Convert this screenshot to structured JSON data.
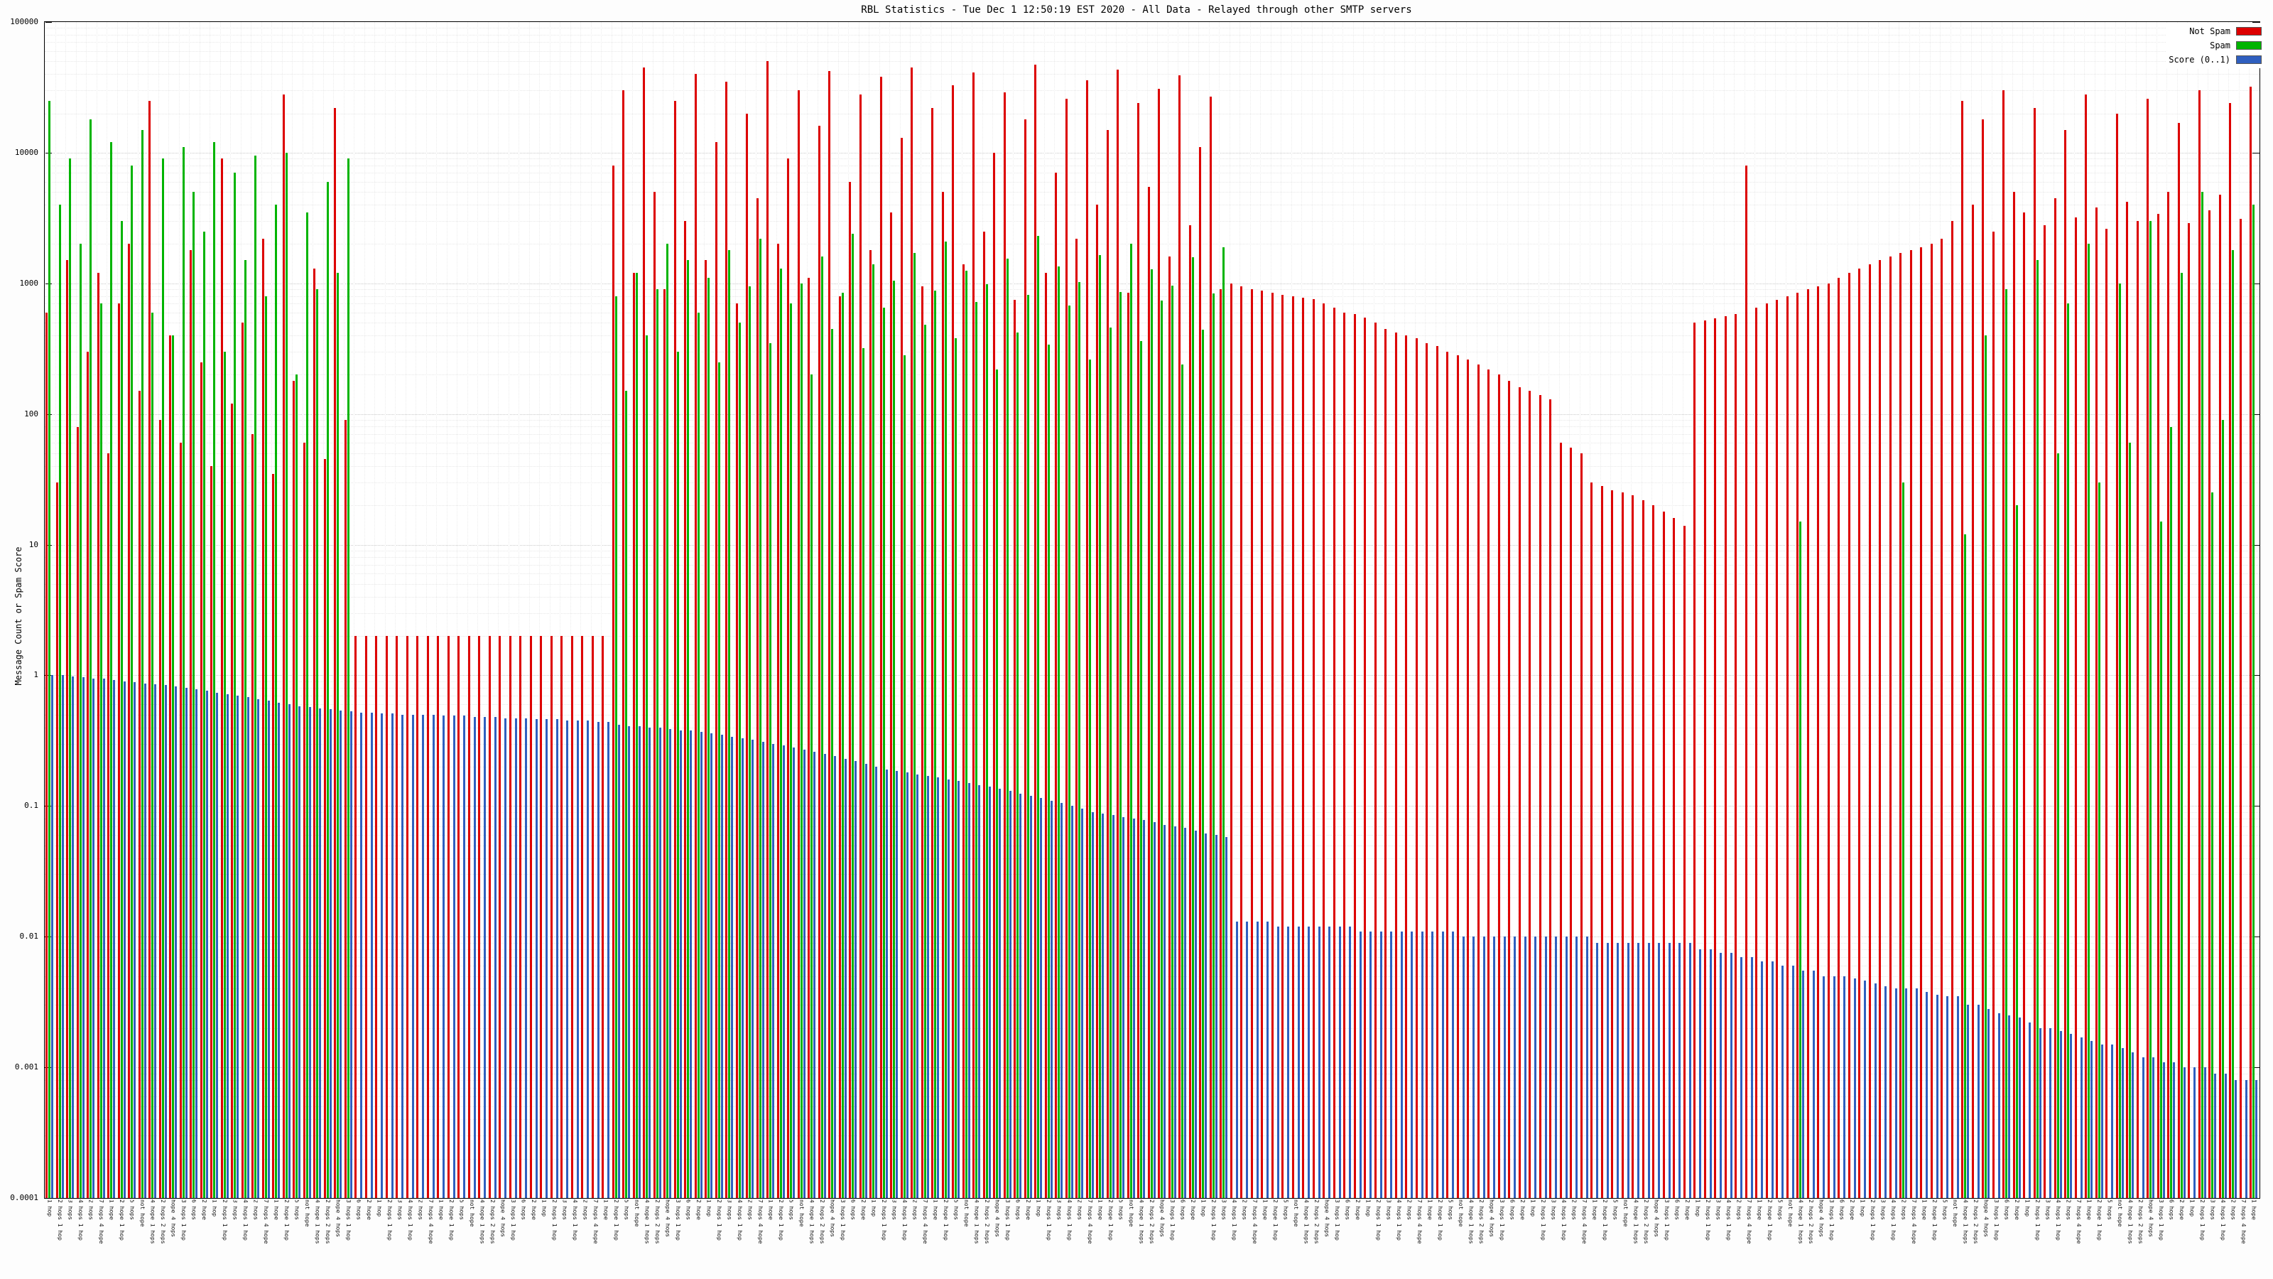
{
  "title": "RBL Statistics - Tue Dec  1 12:50:19 EST 2020 - All Data - Relayed through other SMTP servers",
  "chart_data": {
    "type": "bar",
    "scale": "log",
    "title": "RBL Statistics - Tue Dec  1 12:50:19 EST 2020 - All Data - Relayed through other SMTP servers",
    "xlabel": "",
    "ylabel": "Message Count or Spam Score",
    "ylim": [
      0.0001,
      100000
    ],
    "yticks": [
      "0.0001",
      "0.001",
      "0.01",
      "0.1",
      "1",
      "10",
      "100",
      "1000",
      "10000",
      "100000"
    ],
    "grid": true,
    "legend_position": "top-right",
    "categories_note": "x tick labels are RBL/relay host entries, too small to read in source; representative cycle used",
    "categories_cycle": [
      "1 hop",
      "2 hops 1 hop",
      "3 hops",
      "4 hops 1 hop",
      "2 hops",
      "7 hops 4 hope",
      "1 hope",
      "2 hope 1 hop",
      "5 hops",
      "not hope",
      "4 hope 1 hops",
      "2 hops 2 hops",
      "hope 4 hops",
      "3 hops 1 hop",
      "6 hops",
      "2 hope"
    ],
    "legend": [
      {
        "name": "Not Spam",
        "color": "#dd0000"
      },
      {
        "name": "Spam",
        "color": "#00b400"
      },
      {
        "name": "Score (0..1)",
        "color": "#2f5fbf"
      }
    ],
    "series": [
      {
        "name": "Not Spam",
        "color": "#dd0000",
        "values": [
          600,
          30,
          1500,
          80,
          300,
          1200,
          50,
          700,
          2000,
          150,
          25000,
          90,
          400,
          60,
          1800,
          250,
          40,
          9000,
          120,
          500,
          70,
          2200,
          35,
          28000,
          180,
          60,
          1300,
          45,
          22000,
          90,
          2,
          2,
          2,
          2,
          2,
          2,
          2,
          2,
          2,
          2,
          2,
          2,
          2,
          2,
          2,
          2,
          2,
          2,
          2,
          2,
          2,
          2,
          2,
          2,
          2,
          8000,
          30000,
          1200,
          45000,
          5000,
          900,
          25000,
          3000,
          40000,
          1500,
          12000,
          35000,
          700,
          20000,
          4500,
          50000,
          2000,
          9000,
          30000,
          1100,
          16000,
          42000,
          800,
          6000,
          28000,
          1800,
          38000,
          3500,
          13000,
          45000,
          950,
          22000,
          5000,
          33000,
          1400,
          41000,
          2500,
          10000,
          29000,
          750,
          18000,
          47000,
          1200,
          7000,
          26000,
          2200,
          36000,
          4000,
          15000,
          43000,
          850,
          24000,
          5500,
          31000,
          1600,
          39000,
          2800,
          11000,
          27000,
          900,
          1000,
          950,
          900,
          880,
          850,
          820,
          800,
          780,
          760,
          700,
          650,
          600,
          580,
          550,
          500,
          450,
          420,
          400,
          380,
          350,
          330,
          300,
          280,
          260,
          240,
          220,
          200,
          180,
          160,
          150,
          140,
          130,
          60,
          55,
          50,
          30,
          28,
          26,
          25,
          24,
          22,
          20,
          18,
          16,
          14,
          500,
          520,
          540,
          560,
          580,
          8000,
          650,
          700,
          750,
          800,
          850,
          900,
          950,
          1000,
          1100,
          1200,
          1300,
          1400,
          1500,
          1600,
          1700,
          1800,
          1900,
          2000,
          2200,
          3000,
          25000,
          4000,
          18000,
          2500,
          30000,
          5000,
          3500,
          22000,
          2800,
          4500,
          15000,
          3200,
          28000,
          3800,
          2600,
          20000,
          4200,
          3000,
          26000,
          3400,
          5000,
          17000,
          2900,
          30000,
          3600,
          4800,
          24000,
          3100,
          32000
        ]
      },
      {
        "name": "Spam",
        "color": "#00b400",
        "values": [
          25000,
          4000,
          9000,
          2000,
          18000,
          700,
          12000,
          3000,
          8000,
          15000,
          600,
          9000,
          400,
          11000,
          5000,
          2500,
          12000,
          300,
          7000,
          1500,
          9500,
          800,
          4000,
          10000,
          200,
          3500,
          900,
          6000,
          1200,
          9000,
          0,
          0,
          0,
          0,
          0,
          0,
          0,
          0,
          0,
          0,
          0,
          0,
          0,
          0,
          0,
          0,
          0,
          0,
          0,
          0,
          0,
          0,
          0,
          0,
          0,
          800,
          150,
          1200,
          400,
          900,
          2000,
          300,
          1500,
          600,
          1100,
          250,
          1800,
          500,
          950,
          2200,
          350,
          1300,
          700,
          1000,
          200,
          1600,
          450,
          850,
          2400,
          320,
          1400,
          650,
          1050,
          280,
          1700,
          480,
          880,
          2100,
          380,
          1250,
          720,
          980,
          220,
          1550,
          420,
          820,
          2300,
          340,
          1350,
          680,
          1020,
          260,
          1650,
          460,
          860,
          2000,
          360,
          1280,
          740,
          960,
          240,
          1580,
          440,
          840,
          1900,
          0,
          0,
          0,
          0,
          0,
          0,
          0,
          0,
          0,
          0,
          0,
          0,
          0,
          0,
          0,
          0,
          0,
          0,
          0,
          0,
          0,
          0,
          0,
          0,
          0,
          0,
          0,
          0,
          0,
          0,
          0,
          0,
          0,
          0,
          0,
          0,
          0,
          0,
          0,
          0,
          0,
          0,
          0,
          0,
          0,
          0,
          0,
          0,
          0,
          0,
          0,
          0,
          0,
          0,
          0,
          15,
          0,
          0,
          0,
          0,
          0,
          0,
          0,
          0,
          0,
          30,
          0,
          0,
          0,
          0,
          0,
          12,
          0,
          400,
          0,
          900,
          20,
          0,
          1500,
          0,
          50,
          700,
          0,
          2000,
          30,
          0,
          1000,
          60,
          0,
          3000,
          15,
          80,
          1200,
          0,
          5000,
          25,
          90,
          1800,
          0,
          4000
        ]
      },
      {
        "name": "Score (0..1)",
        "color": "#2f5fbf",
        "values": [
          1.0,
          1.0,
          0.98,
          0.97,
          0.95,
          0.94,
          0.92,
          0.9,
          0.89,
          0.87,
          0.85,
          0.84,
          0.82,
          0.8,
          0.78,
          0.76,
          0.74,
          0.72,
          0.7,
          0.68,
          0.66,
          0.64,
          0.62,
          0.6,
          0.58,
          0.57,
          0.56,
          0.55,
          0.54,
          0.53,
          0.52,
          0.52,
          0.51,
          0.51,
          0.5,
          0.5,
          0.5,
          0.5,
          0.49,
          0.49,
          0.49,
          0.48,
          0.48,
          0.48,
          0.47,
          0.47,
          0.47,
          0.46,
          0.46,
          0.46,
          0.45,
          0.45,
          0.45,
          0.44,
          0.44,
          0.42,
          0.41,
          0.41,
          0.4,
          0.4,
          0.39,
          0.38,
          0.38,
          0.37,
          0.36,
          0.35,
          0.34,
          0.33,
          0.32,
          0.31,
          0.3,
          0.29,
          0.28,
          0.27,
          0.26,
          0.25,
          0.24,
          0.23,
          0.22,
          0.21,
          0.2,
          0.19,
          0.185,
          0.18,
          0.175,
          0.17,
          0.165,
          0.16,
          0.155,
          0.15,
          0.145,
          0.14,
          0.135,
          0.13,
          0.125,
          0.12,
          0.115,
          0.11,
          0.105,
          0.1,
          0.095,
          0.09,
          0.088,
          0.085,
          0.082,
          0.08,
          0.078,
          0.075,
          0.072,
          0.07,
          0.068,
          0.065,
          0.062,
          0.06,
          0.058,
          0.013,
          0.013,
          0.013,
          0.013,
          0.012,
          0.012,
          0.012,
          0.012,
          0.012,
          0.012,
          0.012,
          0.012,
          0.011,
          0.011,
          0.011,
          0.011,
          0.011,
          0.011,
          0.011,
          0.011,
          0.011,
          0.011,
          0.01,
          0.01,
          0.01,
          0.01,
          0.01,
          0.01,
          0.01,
          0.01,
          0.01,
          0.01,
          0.01,
          0.01,
          0.01,
          0.009,
          0.009,
          0.009,
          0.009,
          0.009,
          0.009,
          0.009,
          0.009,
          0.009,
          0.009,
          0.008,
          0.008,
          0.0075,
          0.0075,
          0.007,
          0.007,
          0.0065,
          0.0065,
          0.006,
          0.006,
          0.0055,
          0.0055,
          0.005,
          0.005,
          0.005,
          0.0048,
          0.0046,
          0.0044,
          0.0042,
          0.004,
          0.004,
          0.004,
          0.0038,
          0.0036,
          0.0035,
          0.0035,
          0.003,
          0.003,
          0.0028,
          0.0026,
          0.0025,
          0.0024,
          0.0022,
          0.002,
          0.002,
          0.0019,
          0.0018,
          0.0017,
          0.0016,
          0.0015,
          0.0015,
          0.0014,
          0.0013,
          0.0012,
          0.0012,
          0.0011,
          0.0011,
          0.001,
          0.001,
          0.001,
          0.0009,
          0.0009,
          0.0008,
          0.0008,
          0.0008
        ]
      }
    ]
  }
}
